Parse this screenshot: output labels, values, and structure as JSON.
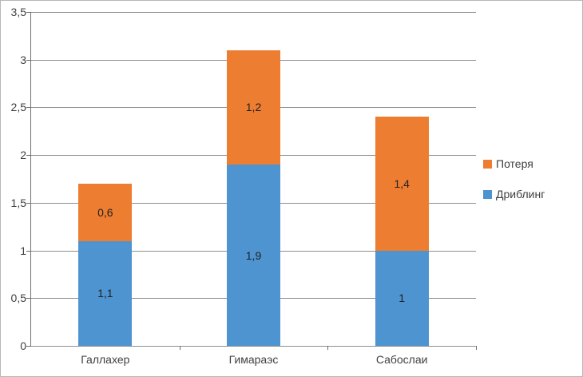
{
  "chart_data": {
    "type": "bar",
    "stacked": true,
    "title": "",
    "xlabel": "",
    "ylabel": "",
    "categories": [
      "Галлахер",
      "Гимараэс",
      "Сабослаи"
    ],
    "series": [
      {
        "name": "Дриблинг",
        "color": "#4e94d0",
        "values": [
          1.1,
          1.9,
          1.0
        ],
        "value_labels": [
          "1,1",
          "1,9",
          "1"
        ]
      },
      {
        "name": "Потеря",
        "color": "#ed7d31",
        "values": [
          0.6,
          1.2,
          1.4
        ],
        "value_labels": [
          "0,6",
          "1,2",
          "1,4"
        ]
      }
    ],
    "totals": [
      1.7,
      3.1,
      2.4
    ],
    "ylim": [
      0,
      3.5
    ],
    "ytick_step": 0.5,
    "ytick_labels": [
      "0",
      "0,5",
      "1",
      "1,5",
      "2",
      "2,5",
      "3",
      "3,5"
    ],
    "grid": true,
    "legend": {
      "position": "right",
      "entries": [
        {
          "label": "Потеря",
          "color": "#ed7d31"
        },
        {
          "label": "Дриблинг",
          "color": "#4e94d0"
        }
      ]
    }
  },
  "colors": {
    "axis": "#6e6e6e",
    "gridline": "#8e8e8e",
    "text": "#3f3f3f"
  }
}
